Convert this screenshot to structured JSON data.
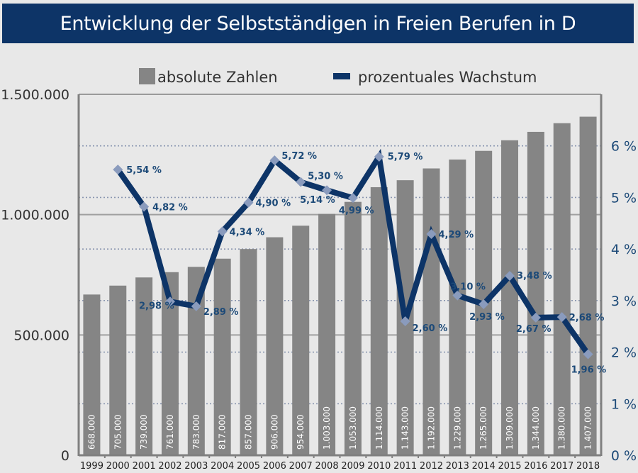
{
  "chart_data": {
    "type": "bar",
    "title": "Entwicklung der Selbstständigen in Freien Berufen in D",
    "categories": [
      "1999",
      "2000",
      "2001",
      "2002",
      "2003",
      "2004",
      "2005",
      "2006",
      "2007",
      "2008",
      "2009",
      "2010",
      "2011",
      "2012",
      "2013",
      "2014",
      "2015",
      "2016",
      "2017",
      "2018"
    ],
    "series": [
      {
        "name": "absolute Zahlen",
        "type": "bar",
        "axis": "left",
        "color": "#858585",
        "values": [
          668000,
          705000,
          739000,
          761000,
          783000,
          817000,
          857000,
          906000,
          954000,
          1003000,
          1053000,
          1114000,
          1143000,
          1192000,
          1229000,
          1265000,
          1309000,
          1344000,
          1380000,
          1407000
        ],
        "labels": [
          "668.000",
          "705.000",
          "739.000",
          "761.000",
          "783.000",
          "817.000",
          "857.000",
          "906.000",
          "954.000",
          "1.003.000",
          "1.053.000",
          "1.114.000",
          "1.143.000",
          "1.192.000",
          "1.229.000",
          "1.265.000",
          "1.309.000",
          "1.344.000",
          "1.380.000",
          "1.407.000"
        ]
      },
      {
        "name": "prozentuales Wachstum",
        "type": "line",
        "axis": "right",
        "color": "#0d3467",
        "marker_color": "#8a9bbd",
        "values": [
          null,
          5.54,
          4.82,
          2.98,
          2.89,
          4.34,
          4.9,
          5.72,
          5.3,
          5.14,
          4.99,
          5.79,
          2.6,
          4.29,
          3.1,
          2.93,
          3.48,
          2.67,
          2.68,
          1.96
        ],
        "labels": [
          null,
          "5,54 %",
          "4,82 %",
          "2,98 %",
          "2,89 %",
          "4,34 %",
          "4,90 %",
          "5,72 %",
          "5,30 %",
          "5,14 %",
          "4,99 %",
          "5,79 %",
          "2,60 %",
          "4,29 %",
          "3,10 %",
          "2,93 %",
          "3,48 %",
          "2,67 %",
          "2,68 %",
          "1,96 %"
        ]
      }
    ],
    "y_left": {
      "range": [
        0,
        1500000
      ],
      "ticks": [
        0,
        500000,
        1000000,
        1500000
      ],
      "tick_labels": [
        "0",
        "500.000",
        "1.000.000",
        "1.500.000"
      ],
      "grid": "solid"
    },
    "y_right": {
      "range": [
        0,
        7
      ],
      "ticks": [
        0,
        1,
        2,
        3,
        4,
        5,
        6
      ],
      "tick_labels": [
        "0 %",
        "1 %",
        "2 %",
        "3 %",
        "4 %",
        "5 %",
        "6 %"
      ],
      "grid": "dotted"
    },
    "xlabel": "",
    "legend": {
      "placement": "top-center",
      "entries": [
        "absolute Zahlen",
        "prozentuales Wachstum"
      ]
    }
  }
}
